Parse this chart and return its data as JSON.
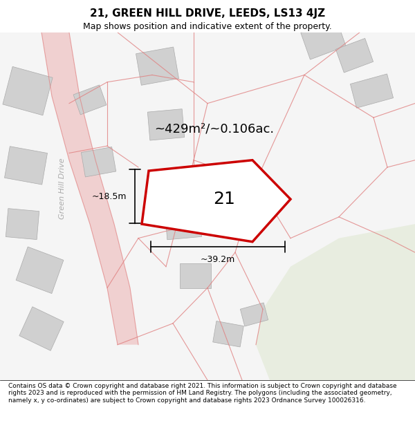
{
  "title_line1": "21, GREEN HILL DRIVE, LEEDS, LS13 4JZ",
  "title_line2": "Map shows position and indicative extent of the property.",
  "footer_text": "Contains OS data © Crown copyright and database right 2021. This information is subject to Crown copyright and database rights 2023 and is reproduced with the permission of HM Land Registry. The polygons (including the associated geometry, namely x, y co-ordinates) are subject to Crown copyright and database rights 2023 Ordnance Survey 100026316.",
  "area_label": "~429m²/~0.106ac.",
  "width_label": "~39.2m",
  "height_label": "~18.5m",
  "plot_number": "21",
  "map_bg": "#f5f5f5",
  "plot_fill": "#ffffff",
  "plot_edge": "#cc0000",
  "building_fill": "#d0d0d0",
  "road_color": "#f5c5c5",
  "green_fill": "#e8ede0",
  "road_line_color": "#e08080",
  "street_label": "Green Hill Drive"
}
